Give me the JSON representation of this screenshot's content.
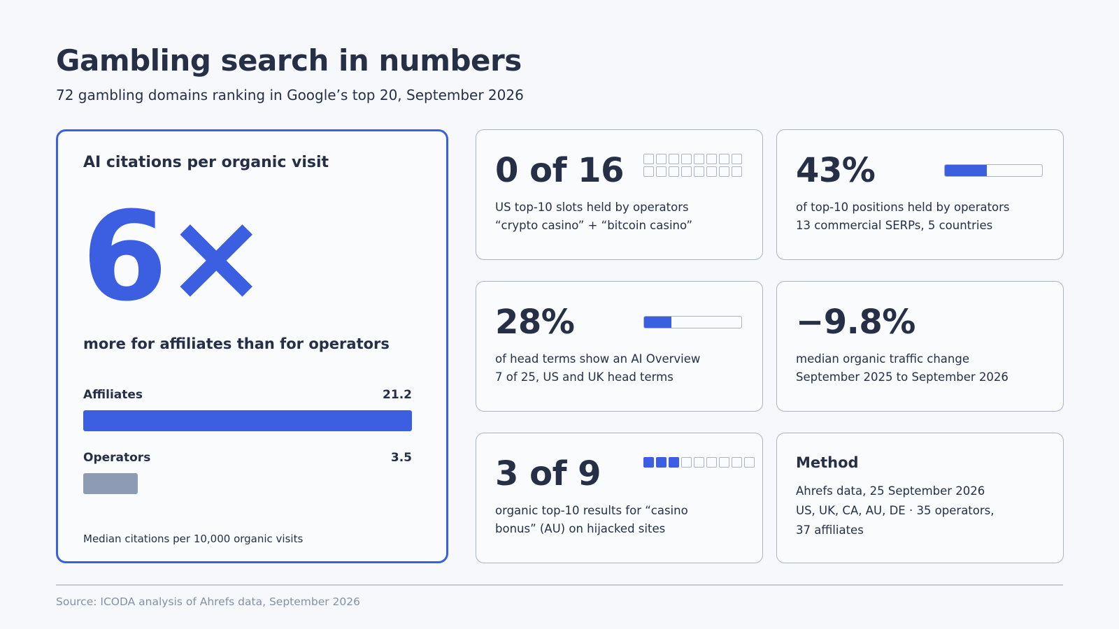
{
  "header": {
    "title": "Gambling search in numbers",
    "subtitle": "72 gambling domains ranking in Google’s top 20, September 2026"
  },
  "hero": {
    "label": "AI citations per organic visit",
    "value": "6×",
    "caption": "more for affiliates than for operators",
    "bars": [
      {
        "label": "Affiliates",
        "value_text": "21.2",
        "value": 21.2,
        "color": "#3b5fe0"
      },
      {
        "label": "Operators",
        "value_text": "3.5",
        "value": 3.5,
        "color": "#8e9cb3"
      }
    ],
    "bar_max": 21.2,
    "footnote": "Median citations per 10,000 organic visits"
  },
  "stats": [
    {
      "value": "0 of 16",
      "line1": "US top-10 slots held by operators",
      "line2": "“crypto casino” + “bitcoin casino”",
      "indicator": {
        "type": "squares",
        "total": 16,
        "filled": 0,
        "columns": 8
      }
    },
    {
      "value": "43%",
      "line1": "of top-10 positions held by operators",
      "line2": "13 commercial SERPs, 5 countries",
      "indicator": {
        "type": "bar",
        "fraction": 0.43
      }
    },
    {
      "value": "28%",
      "line1": "of head terms show an AI Overview",
      "line2": "7 of 25, US and UK head terms",
      "indicator": {
        "type": "bar",
        "fraction": 0.28
      }
    },
    {
      "value": "−9.8%",
      "line1": "median organic traffic change",
      "line2": "September 2025 to September 2026",
      "indicator": {
        "type": "none"
      }
    },
    {
      "value": "3 of 9",
      "line1": "organic top-10 results for “casino",
      "line2": "bonus” (AU) on hijacked sites",
      "indicator": {
        "type": "squares",
        "total": 9,
        "filled": 3,
        "columns": 9
      }
    }
  ],
  "method": {
    "title": "Method",
    "lines": [
      "Ahrefs data, 25 September 2026",
      "US, UK, CA, AU, DE · 35 operators,",
      "37 affiliates"
    ]
  },
  "footer": {
    "source": "Source: ICODA analysis of Ahrefs data, September 2026"
  },
  "colors": {
    "accent": "#3b5fe0",
    "text": "#253047",
    "muted": "#8390a6",
    "border": "#aab4c4",
    "operators_bar": "#8e9cb3"
  }
}
